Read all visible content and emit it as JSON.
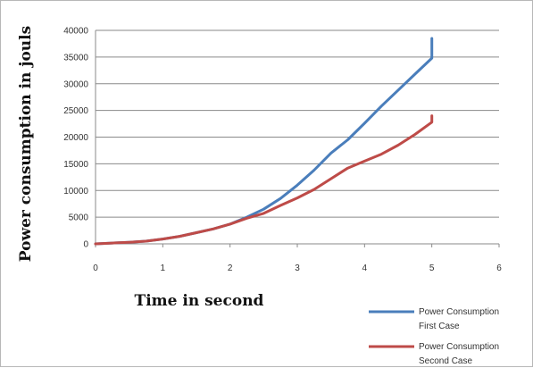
{
  "chart_data": {
    "type": "line",
    "title": "",
    "xlabel": "Time in second",
    "ylabel": "Power consumption in jouls",
    "xlim": [
      0,
      6
    ],
    "ylim": [
      0,
      40000
    ],
    "xticks": [
      0,
      1,
      2,
      3,
      4,
      5,
      6
    ],
    "yticks": [
      0,
      5000,
      10000,
      15000,
      20000,
      25000,
      30000,
      35000,
      40000
    ],
    "grid": "horizontal",
    "legend_position": "bottom-right",
    "series": [
      {
        "name": "Power Consumption First Case",
        "color": "#4a7ebb",
        "x": [
          0,
          0.25,
          0.5,
          0.75,
          1.0,
          1.25,
          1.5,
          1.75,
          2.0,
          2.25,
          2.5,
          2.75,
          3.0,
          3.25,
          3.5,
          3.75,
          4.0,
          4.25,
          4.5,
          4.75,
          5.0,
          5.0
        ],
        "y": [
          0,
          150,
          300,
          500,
          900,
          1400,
          2100,
          2800,
          3700,
          5000,
          6500,
          8500,
          11000,
          13800,
          17000,
          19500,
          22600,
          25800,
          28800,
          31800,
          34800,
          38500
        ]
      },
      {
        "name": "Power Consumption Second Case",
        "color": "#be4b48",
        "x": [
          0,
          0.25,
          0.5,
          0.75,
          1.0,
          1.25,
          1.5,
          1.75,
          2.0,
          2.25,
          2.5,
          2.75,
          3.0,
          3.25,
          3.5,
          3.75,
          4.0,
          4.25,
          4.5,
          4.75,
          5.0,
          5.0
        ],
        "y": [
          0,
          150,
          300,
          500,
          900,
          1400,
          2100,
          2800,
          3700,
          4800,
          5700,
          7200,
          8600,
          10200,
          12200,
          14200,
          15500,
          16800,
          18500,
          20500,
          22800,
          24000
        ]
      }
    ]
  }
}
